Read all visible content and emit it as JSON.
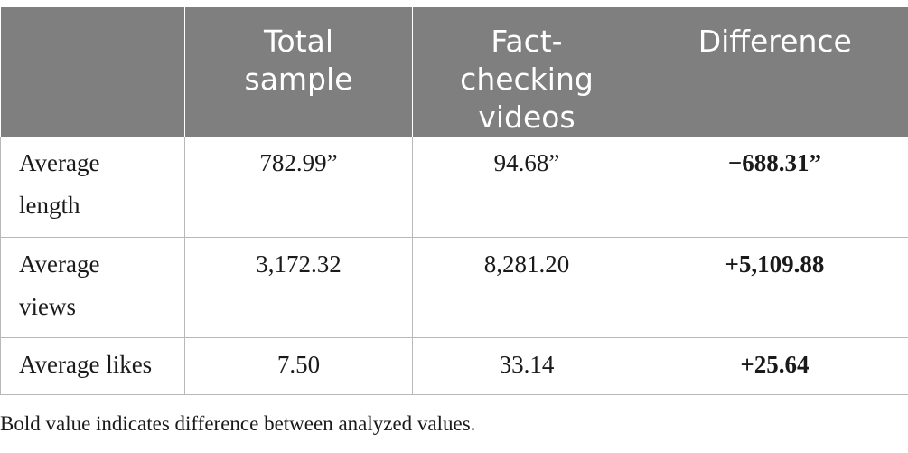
{
  "table": {
    "columns": [
      "",
      "Total sample",
      "Fact-checking videos",
      "Difference"
    ],
    "header_lines": {
      "col1": [
        "Total",
        "sample"
      ],
      "col2": [
        "Fact-",
        "checking",
        "videos"
      ],
      "col3": [
        "Difference"
      ]
    },
    "rows": [
      {
        "label_lines": [
          "Average",
          "length"
        ],
        "label": "Average length",
        "total_sample": "782.99”",
        "fact_checking": "94.68”",
        "difference": "−688.31”"
      },
      {
        "label_lines": [
          "Average",
          "views"
        ],
        "label": "Average views",
        "total_sample": "3,172.32",
        "fact_checking": "8,281.20",
        "difference": "+5,109.88"
      },
      {
        "label_lines": [
          "Average likes"
        ],
        "label": "Average likes",
        "total_sample": "7.50",
        "fact_checking": "33.14",
        "difference": "+25.64"
      }
    ]
  },
  "footnote": "Bold value indicates difference between analyzed values.",
  "colors": {
    "header_bg": "#7e7f7e",
    "header_text": "#ffffff",
    "border": "#b8b8b8"
  }
}
